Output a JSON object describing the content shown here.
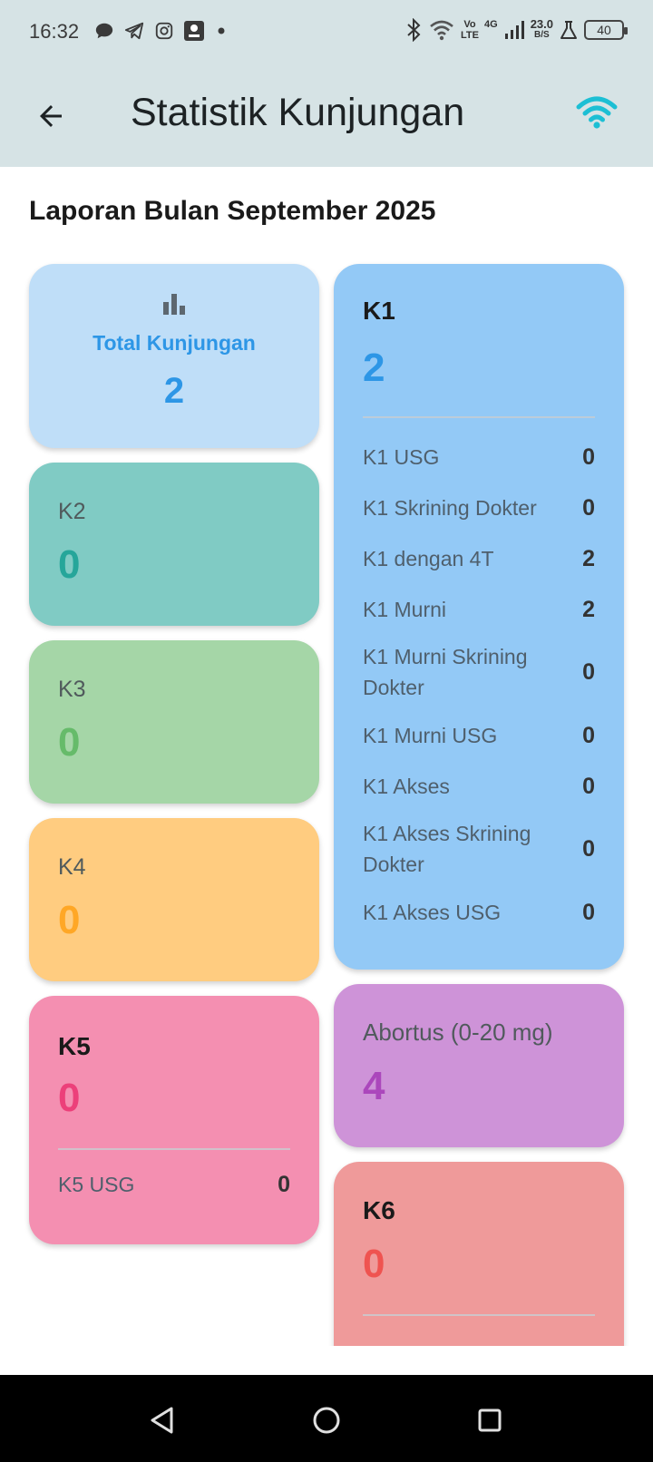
{
  "status_bar": {
    "time": "16:32",
    "volte_top": "Vo",
    "volte_bottom": "LTE",
    "network": "4G",
    "speed_value": "23.0",
    "speed_unit": "B/S",
    "battery": "40"
  },
  "app_bar": {
    "title": "Statistik Kunjungan",
    "back_icon": "arrow-back-icon",
    "status_icon": "wifi-icon",
    "status_color": "#1cbfd4"
  },
  "report": {
    "title": "Laporan Bulan September 2025"
  },
  "total": {
    "icon": "bar-chart-icon",
    "label": "Total Kunjungan",
    "value": "2",
    "color": "#2d96e6"
  },
  "k1": {
    "label": "K1",
    "value": "2",
    "color": "#2d96e6",
    "rows": [
      {
        "label": "K1 USG",
        "value": "0"
      },
      {
        "label": "K1 Skrining Dokter",
        "value": "0"
      },
      {
        "label": "K1 dengan 4T",
        "value": "2"
      },
      {
        "label": "K1 Murni",
        "value": "2"
      },
      {
        "label": "K1 Murni Skrining Dokter",
        "value": "0"
      },
      {
        "label": "K1 Murni USG",
        "value": "0"
      },
      {
        "label": "K1 Akses",
        "value": "0"
      },
      {
        "label": "K1 Akses Skrining Dokter",
        "value": "0"
      },
      {
        "label": "K1 Akses USG",
        "value": "0"
      }
    ]
  },
  "k2": {
    "label": "K2",
    "value": "0",
    "color": "#26a69a"
  },
  "k3": {
    "label": "K3",
    "value": "0",
    "color": "#66bb6a"
  },
  "k4": {
    "label": "K4",
    "value": "0",
    "color": "#ffa726"
  },
  "k5": {
    "label": "K5",
    "value": "0",
    "color": "#ec407a",
    "rows": [
      {
        "label": "K5 USG",
        "value": "0"
      }
    ]
  },
  "abortus": {
    "label": "Abortus (0-20 mg)",
    "value": "4",
    "color": "#ab47bc"
  },
  "k6": {
    "label": "K6",
    "value": "0",
    "color": "#ef5350"
  },
  "nav_bar": {
    "back_icon": "triangle-back-icon",
    "home_icon": "circle-home-icon",
    "recents_icon": "square-recents-icon"
  }
}
